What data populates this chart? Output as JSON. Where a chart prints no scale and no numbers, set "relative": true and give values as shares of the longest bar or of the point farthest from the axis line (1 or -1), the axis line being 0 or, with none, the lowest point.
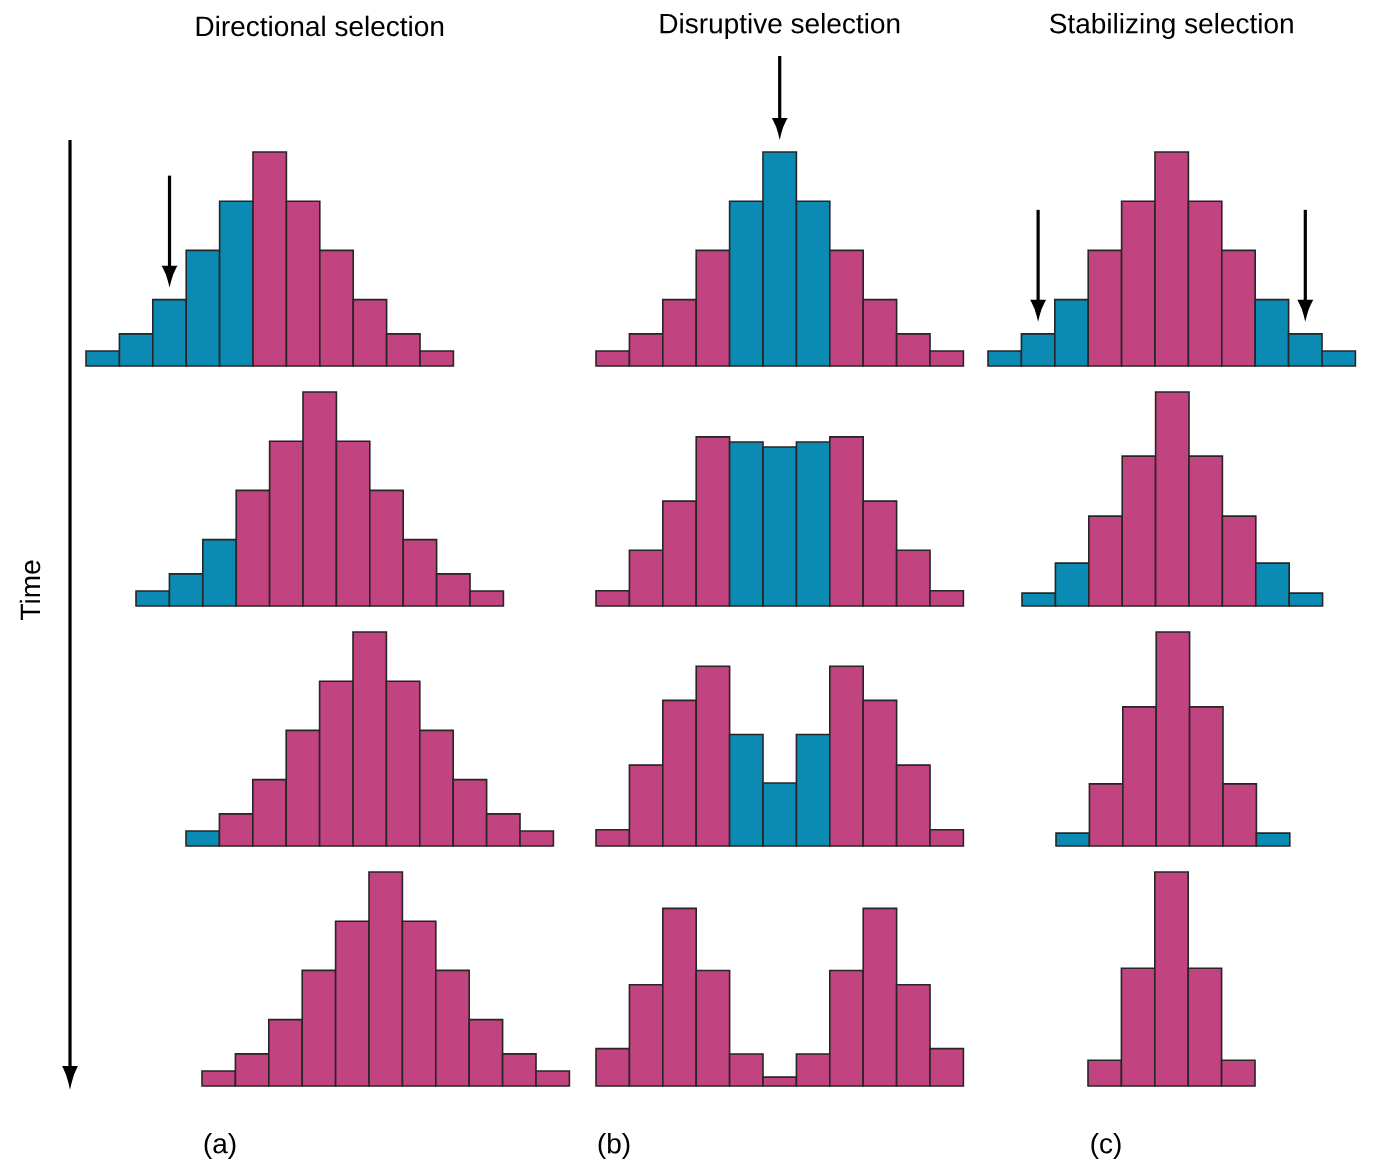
{
  "chart_data": [
    {
      "type": "bar",
      "relative": true,
      "title": "Directional selection",
      "annotations": [
        "Time"
      ],
      "categories": [
        null,
        null,
        null,
        null,
        null,
        null,
        null,
        null,
        null,
        null,
        null
      ],
      "values": [
        0.07,
        0.15,
        0.31,
        0.54,
        0.77,
        1,
        0.77,
        0.54,
        0.31,
        0.15,
        0.07
      ],
      "colors": [
        "#0b8bb3",
        "#0b8bb3",
        "#0b8bb3",
        "#0b8bb3",
        "#0b8bb3",
        "#c1437f",
        "#c1437f",
        "#c1437f",
        "#c1437f",
        "#c1437f",
        "#c1437f"
      ]
    },
    {
      "type": "bar",
      "relative": true,
      "title": "Disruptive selection",
      "categories": [
        null,
        null,
        null,
        null,
        null,
        null,
        null,
        null,
        null,
        null,
        null
      ],
      "values": [
        0.07,
        0.15,
        0.31,
        0.54,
        0.77,
        1,
        0.77,
        0.54,
        0.31,
        0.15,
        0.07
      ],
      "colors": [
        "#c1437f",
        "#c1437f",
        "#c1437f",
        "#c1437f",
        "#0b8bb3",
        "#0b8bb3",
        "#0b8bb3",
        "#c1437f",
        "#c1437f",
        "#c1437f",
        "#c1437f"
      ]
    },
    {
      "type": "bar",
      "relative": true,
      "title": "Stabilizing selection",
      "categories": [
        null,
        null,
        null,
        null,
        null,
        null,
        null,
        null,
        null,
        null,
        null
      ],
      "values": [
        0.07,
        0.15,
        0.31,
        0.54,
        0.77,
        1,
        0.77,
        0.54,
        0.31,
        0.15,
        0.07
      ],
      "colors": [
        "#0b8bb3",
        "#0b8bb3",
        "#0b8bb3",
        "#c1437f",
        "#c1437f",
        "#c1437f",
        "#c1437f",
        "#c1437f",
        "#0b8bb3",
        "#0b8bb3",
        "#0b8bb3"
      ]
    },
    {
      "type": "bar",
      "relative": true,
      "categories": [
        null,
        null,
        null,
        null,
        null,
        null,
        null,
        null,
        null,
        null,
        null
      ],
      "values": [
        0.07,
        0.15,
        0.31,
        0.54,
        0.77,
        1,
        0.77,
        0.54,
        0.31,
        0.15,
        0.07
      ],
      "colors": [
        "#0b8bb3",
        "#0b8bb3",
        "#0b8bb3",
        "#c1437f",
        "#c1437f",
        "#c1437f",
        "#c1437f",
        "#c1437f",
        "#c1437f",
        "#c1437f",
        "#c1437f"
      ]
    },
    {
      "type": "bar",
      "relative": true,
      "categories": [
        null,
        null,
        null,
        null,
        null,
        null,
        null,
        null,
        null,
        null,
        null
      ],
      "values": [
        0.09,
        0.33,
        0.62,
        1,
        0.97,
        0.94,
        0.97,
        1,
        0.62,
        0.33,
        0.09
      ],
      "colors": [
        "#c1437f",
        "#c1437f",
        "#c1437f",
        "#c1437f",
        "#0b8bb3",
        "#0b8bb3",
        "#0b8bb3",
        "#c1437f",
        "#c1437f",
        "#c1437f",
        "#c1437f"
      ]
    },
    {
      "type": "bar",
      "relative": true,
      "categories": [
        null,
        null,
        null,
        null,
        null,
        null,
        null,
        null,
        null
      ],
      "values": [
        0.06,
        0.2,
        0.42,
        0.7,
        1,
        0.7,
        0.42,
        0.2,
        0.06
      ],
      "colors": [
        "#0b8bb3",
        "#0b8bb3",
        "#c1437f",
        "#c1437f",
        "#c1437f",
        "#c1437f",
        "#c1437f",
        "#0b8bb3",
        "#0b8bb3"
      ]
    },
    {
      "type": "bar",
      "relative": true,
      "categories": [
        null,
        null,
        null,
        null,
        null,
        null,
        null,
        null,
        null,
        null,
        null
      ],
      "values": [
        0.07,
        0.15,
        0.31,
        0.54,
        0.77,
        1,
        0.77,
        0.54,
        0.31,
        0.15,
        0.07
      ],
      "colors": [
        "#0b8bb3",
        "#c1437f",
        "#c1437f",
        "#c1437f",
        "#c1437f",
        "#c1437f",
        "#c1437f",
        "#c1437f",
        "#c1437f",
        "#c1437f",
        "#c1437f"
      ]
    },
    {
      "type": "bar",
      "relative": true,
      "categories": [
        null,
        null,
        null,
        null,
        null,
        null,
        null,
        null,
        null,
        null,
        null
      ],
      "values": [
        0.09,
        0.45,
        0.81,
        1,
        0.62,
        0.35,
        0.62,
        1,
        0.81,
        0.45,
        0.09
      ],
      "colors": [
        "#c1437f",
        "#c1437f",
        "#c1437f",
        "#c1437f",
        "#0b8bb3",
        "#0b8bb3",
        "#0b8bb3",
        "#c1437f",
        "#c1437f",
        "#c1437f",
        "#c1437f"
      ]
    },
    {
      "type": "bar",
      "relative": true,
      "categories": [
        null,
        null,
        null,
        null,
        null,
        null,
        null
      ],
      "values": [
        0.06,
        0.29,
        0.65,
        1,
        0.65,
        0.29,
        0.06
      ],
      "colors": [
        "#0b8bb3",
        "#c1437f",
        "#c1437f",
        "#c1437f",
        "#c1437f",
        "#c1437f",
        "#0b8bb3"
      ]
    },
    {
      "type": "bar",
      "relative": true,
      "xlabel": "(a)",
      "categories": [
        null,
        null,
        null,
        null,
        null,
        null,
        null,
        null,
        null,
        null,
        null
      ],
      "values": [
        0.07,
        0.15,
        0.31,
        0.54,
        0.77,
        1,
        0.77,
        0.54,
        0.31,
        0.15,
        0.07
      ],
      "colors": [
        "#c1437f",
        "#c1437f",
        "#c1437f",
        "#c1437f",
        "#c1437f",
        "#c1437f",
        "#c1437f",
        "#c1437f",
        "#c1437f",
        "#c1437f",
        "#c1437f"
      ]
    },
    {
      "type": "bar",
      "relative": true,
      "xlabel": "(b)",
      "categories": [
        null,
        null,
        null,
        null,
        null,
        null,
        null,
        null,
        null,
        null,
        null
      ],
      "values": [
        0.21,
        0.57,
        1,
        0.65,
        0.18,
        0.05,
        0.18,
        0.65,
        1,
        0.57,
        0.21
      ],
      "colors": [
        "#c1437f",
        "#c1437f",
        "#c1437f",
        "#c1437f",
        "#c1437f",
        "#c1437f",
        "#c1437f",
        "#c1437f",
        "#c1437f",
        "#c1437f",
        "#c1437f"
      ]
    },
    {
      "type": "bar",
      "relative": true,
      "xlabel": "(c)",
      "categories": [
        null,
        null,
        null,
        null,
        null
      ],
      "values": [
        0.12,
        0.55,
        1,
        0.55,
        0.12
      ],
      "colors": [
        "#c1437f",
        "#c1437f",
        "#c1437f",
        "#c1437f",
        "#c1437f"
      ]
    }
  ]
}
